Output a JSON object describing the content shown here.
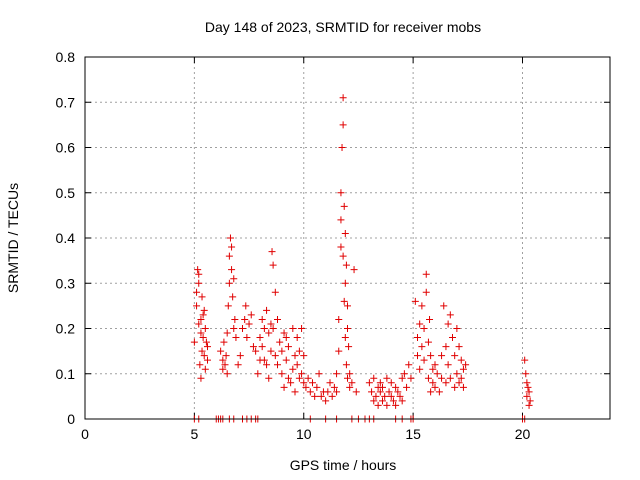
{
  "chart_data": {
    "type": "scatter",
    "title": "Day 148 of 2023, SRMTID for receiver mobs",
    "xlabel": "GPS time / hours",
    "ylabel": "SRMTID / TECUs",
    "xlim": [
      0,
      24
    ],
    "ylim": [
      0,
      0.8
    ],
    "xticks": [
      0,
      5,
      10,
      15,
      20
    ],
    "xtick_labels": [
      "0",
      "5",
      "10",
      "15",
      "20"
    ],
    "yticks": [
      0,
      0.1,
      0.2,
      0.3,
      0.4,
      0.5,
      0.6,
      0.7,
      0.8
    ],
    "ytick_labels": [
      "0",
      "0.1",
      "0.2",
      "0.3",
      "0.4",
      "0.5",
      "0.6",
      "0.7",
      "0.8"
    ],
    "grid": true,
    "marker": "plus",
    "color": "#e00000",
    "series": [
      {
        "name": "mobs",
        "x": [
          5.0,
          5.1,
          5.15,
          5.2,
          5.2,
          5.25,
          5.3,
          5.3,
          5.35,
          5.35,
          5.4,
          5.4,
          5.45,
          5.5,
          5.5,
          5.55,
          5.6,
          5.6,
          5.1,
          5.2,
          5.3,
          5.45,
          6.2,
          6.3,
          6.3,
          6.35,
          6.4,
          6.45,
          6.5,
          6.5,
          6.55,
          6.6,
          6.6,
          6.65,
          6.7,
          6.7,
          6.75,
          6.8,
          6.8,
          6.85,
          6.9,
          7.0,
          7.1,
          7.2,
          7.3,
          7.35,
          7.4,
          7.5,
          7.6,
          7.7,
          7.8,
          7.9,
          8.0,
          8.0,
          8.1,
          8.1,
          8.2,
          8.2,
          8.3,
          8.3,
          8.4,
          8.4,
          8.5,
          8.5,
          8.55,
          8.6,
          8.6,
          8.7,
          8.7,
          8.8,
          8.8,
          8.9,
          9.0,
          9.0,
          9.1,
          9.1,
          9.2,
          9.2,
          9.3,
          9.3,
          9.4,
          9.5,
          9.5,
          9.6,
          9.6,
          9.7,
          9.7,
          9.8,
          9.8,
          9.9,
          9.9,
          10.0,
          10.0,
          10.1,
          10.2,
          10.3,
          10.4,
          10.5,
          10.6,
          10.7,
          10.8,
          10.9,
          11.0,
          11.1,
          11.2,
          11.3,
          11.4,
          11.5,
          11.5,
          11.6,
          11.6,
          11.7,
          11.7,
          11.7,
          11.75,
          11.8,
          11.8,
          11.8,
          11.85,
          11.85,
          11.9,
          11.9,
          11.9,
          11.95,
          11.95,
          12.0,
          12.0,
          12.0,
          12.05,
          12.1,
          12.1,
          12.2,
          12.3,
          12.4,
          13.0,
          13.1,
          13.2,
          13.2,
          13.3,
          13.4,
          13.4,
          13.5,
          13.5,
          13.6,
          13.6,
          13.7,
          13.8,
          13.8,
          13.9,
          14.0,
          14.0,
          14.1,
          14.2,
          14.2,
          14.3,
          14.4,
          14.5,
          14.5,
          14.6,
          14.7,
          14.8,
          14.9,
          15.1,
          15.2,
          15.2,
          15.3,
          15.3,
          15.4,
          15.4,
          15.5,
          15.5,
          15.6,
          15.6,
          15.7,
          15.7,
          15.75,
          15.8,
          15.8,
          15.9,
          15.9,
          16.0,
          16.0,
          16.1,
          16.2,
          16.3,
          16.3,
          16.4,
          16.5,
          16.5,
          16.6,
          16.6,
          16.7,
          16.7,
          16.8,
          16.9,
          16.9,
          17.0,
          17.0,
          17.1,
          17.1,
          17.2,
          17.2,
          17.3,
          17.3,
          17.4,
          20.1,
          20.15,
          20.2,
          20.2,
          20.25,
          20.3,
          20.3,
          20.35,
          5.0,
          5.2,
          6.0,
          6.1,
          6.2,
          6.3,
          6.6,
          6.8,
          7.2,
          7.4,
          7.6,
          7.8,
          7.9,
          10.3,
          11.0,
          11.5,
          12.2,
          12.5,
          12.8,
          13.0,
          13.2,
          14.2,
          14.5,
          14.9,
          15.0,
          20.0,
          20.1
        ],
        "y": [
          0.17,
          0.25,
          0.33,
          0.3,
          0.21,
          0.12,
          0.09,
          0.19,
          0.27,
          0.15,
          0.23,
          0.18,
          0.14,
          0.2,
          0.11,
          0.17,
          0.16,
          0.13,
          0.28,
          0.32,
          0.22,
          0.24,
          0.15,
          0.13,
          0.11,
          0.17,
          0.12,
          0.14,
          0.19,
          0.1,
          0.25,
          0.3,
          0.36,
          0.4,
          0.33,
          0.38,
          0.27,
          0.2,
          0.31,
          0.22,
          0.18,
          0.12,
          0.14,
          0.2,
          0.22,
          0.25,
          0.18,
          0.21,
          0.23,
          0.16,
          0.15,
          0.1,
          0.13,
          0.18,
          0.22,
          0.16,
          0.2,
          0.13,
          0.24,
          0.12,
          0.19,
          0.09,
          0.21,
          0.15,
          0.37,
          0.34,
          0.2,
          0.28,
          0.14,
          0.22,
          0.12,
          0.17,
          0.1,
          0.15,
          0.19,
          0.07,
          0.13,
          0.18,
          0.09,
          0.16,
          0.08,
          0.2,
          0.11,
          0.14,
          0.06,
          0.12,
          0.18,
          0.09,
          0.15,
          0.2,
          0.1,
          0.14,
          0.08,
          0.07,
          0.09,
          0.06,
          0.08,
          0.05,
          0.07,
          0.1,
          0.05,
          0.06,
          0.04,
          0.06,
          0.08,
          0.05,
          0.07,
          0.1,
          0.06,
          0.22,
          0.15,
          0.5,
          0.44,
          0.38,
          0.6,
          0.71,
          0.65,
          0.36,
          0.47,
          0.26,
          0.41,
          0.3,
          0.18,
          0.34,
          0.12,
          0.25,
          0.2,
          0.09,
          0.16,
          0.07,
          0.1,
          0.08,
          0.33,
          0.06,
          0.08,
          0.06,
          0.04,
          0.09,
          0.05,
          0.07,
          0.03,
          0.06,
          0.08,
          0.04,
          0.07,
          0.05,
          0.09,
          0.03,
          0.06,
          0.05,
          0.08,
          0.04,
          0.07,
          0.03,
          0.06,
          0.05,
          0.09,
          0.04,
          0.1,
          0.07,
          0.12,
          0.09,
          0.26,
          0.18,
          0.14,
          0.21,
          0.11,
          0.25,
          0.16,
          0.2,
          0.13,
          0.28,
          0.32,
          0.17,
          0.09,
          0.22,
          0.06,
          0.14,
          0.11,
          0.08,
          0.07,
          0.12,
          0.1,
          0.06,
          0.14,
          0.09,
          0.25,
          0.08,
          0.16,
          0.21,
          0.12,
          0.23,
          0.09,
          0.18,
          0.07,
          0.14,
          0.2,
          0.1,
          0.16,
          0.08,
          0.13,
          0.09,
          0.11,
          0.07,
          0.12,
          0.13,
          0.1,
          0.08,
          0.05,
          0.07,
          0.03,
          0.06,
          0.04,
          0,
          0,
          0,
          0,
          0,
          0,
          0,
          0,
          0,
          0,
          0,
          0,
          0,
          0,
          0,
          0,
          0,
          0,
          0,
          0,
          0,
          0,
          0,
          0,
          0,
          0,
          0
        ]
      }
    ]
  }
}
